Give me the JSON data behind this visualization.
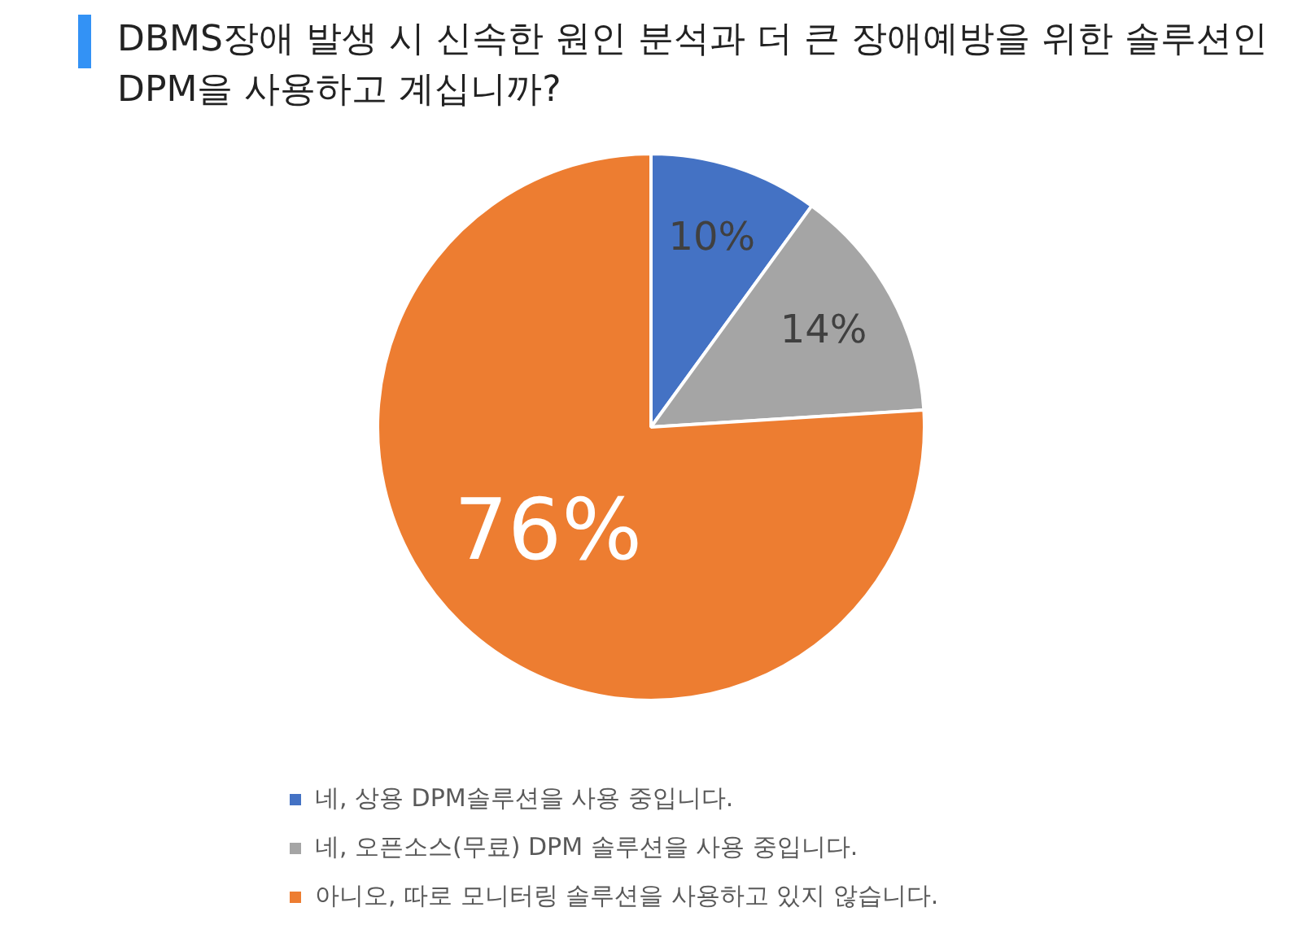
{
  "chart_data": {
    "type": "pie",
    "title": "DBMS장애 발생 시 신속한 원인 분석과 더 큰 장애예방을 위한 솔루션인 DPM을 사용하고 계십니까?",
    "categories": [
      "네, 상용 DPM솔루션을 사용 중입니다.",
      "네, 오픈소스(무료) DPM 솔루션을 사용 중입니다.",
      "아니오, 따로 모니터링 솔루션을 사용하고 있지 않습니다."
    ],
    "values": [
      10,
      14,
      76
    ],
    "colors": [
      "#4472c4",
      "#a5a5a5",
      "#ed7d31"
    ],
    "value_labels": [
      "10%",
      "14%",
      "76%"
    ],
    "legend": "bottom"
  }
}
